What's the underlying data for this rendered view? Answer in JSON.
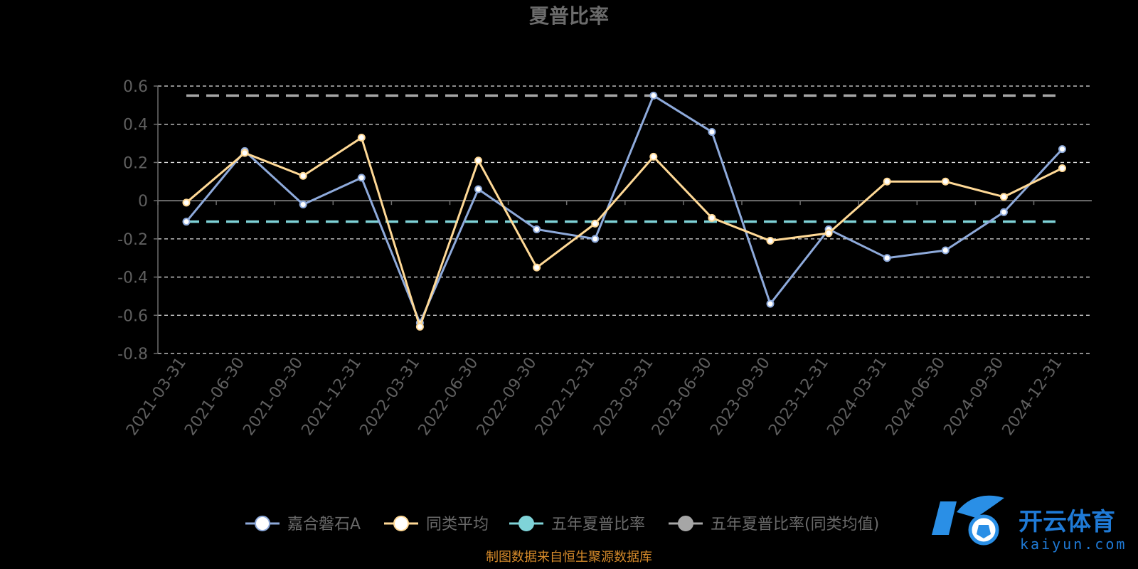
{
  "chart_data": {
    "type": "line",
    "title": "夏普比率",
    "categories": [
      "2021-03-31",
      "2021-06-30",
      "2021-09-30",
      "2021-12-31",
      "2022-03-31",
      "2022-06-30",
      "2022-09-30",
      "2022-12-31",
      "2023-03-31",
      "2023-06-30",
      "2023-09-30",
      "2023-12-31",
      "2024-03-31",
      "2024-06-30",
      "2024-09-30",
      "2024-12-31"
    ],
    "y_ticks": [
      "0.6",
      "0.4",
      "0.2",
      "0",
      "-0.2",
      "-0.4",
      "-0.6",
      "-0.8"
    ],
    "ylim": [
      -0.8,
      0.6
    ],
    "grid": true,
    "legend_position": "bottom",
    "series": [
      {
        "name": "嘉合磐石A",
        "color": "#8eaadb",
        "values": [
          -0.11,
          0.26,
          -0.02,
          0.12,
          -0.64,
          0.06,
          -0.15,
          -0.2,
          0.55,
          0.36,
          -0.54,
          -0.15,
          -0.3,
          -0.26,
          -0.06,
          0.27
        ]
      },
      {
        "name": "同类平均",
        "color": "#ffd996",
        "values": [
          -0.01,
          0.25,
          0.13,
          0.33,
          -0.66,
          0.21,
          -0.35,
          -0.12,
          0.23,
          -0.09,
          -0.21,
          -0.17,
          0.1,
          0.1,
          0.02,
          0.17
        ]
      },
      {
        "name": "五年夏普比率",
        "color": "#7fd3d8",
        "dashed": true,
        "values": [
          -0.11,
          -0.11,
          -0.11,
          -0.11,
          -0.11,
          -0.11,
          -0.11,
          -0.11,
          -0.11,
          -0.11,
          -0.11,
          -0.11,
          -0.11,
          -0.11,
          -0.11,
          -0.11
        ]
      },
      {
        "name": "五年夏普比率(同类均值)",
        "color": "#a6a6a6",
        "dashed": true,
        "values": [
          0.55,
          0.55,
          0.55,
          0.55,
          0.55,
          0.55,
          0.55,
          0.55,
          0.55,
          0.55,
          0.55,
          0.55,
          0.55,
          0.55,
          0.55,
          0.55
        ]
      }
    ]
  },
  "source_note": "制图数据来自恒生聚源数据库",
  "brand": {
    "name": "开云体育",
    "url_text": "kaiyun.com"
  }
}
